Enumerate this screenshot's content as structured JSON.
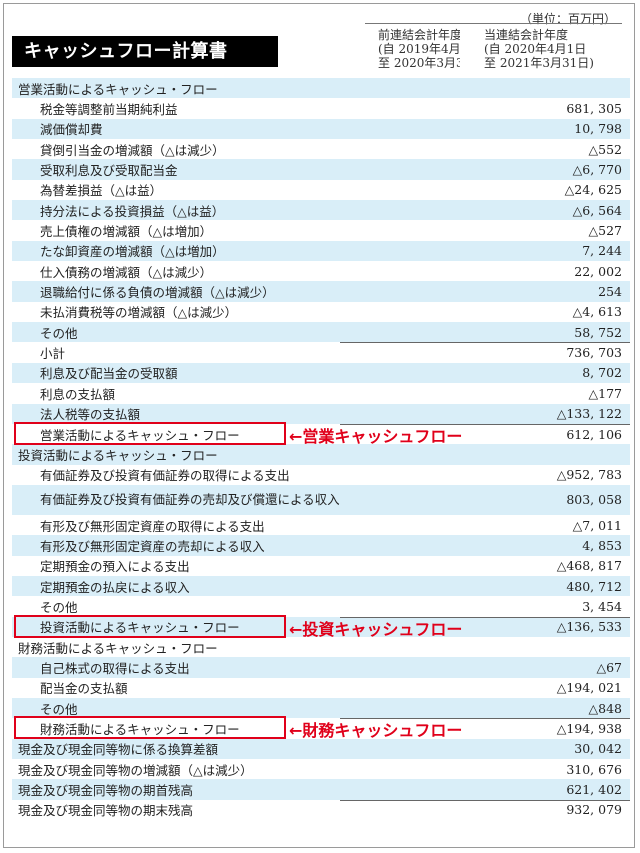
{
  "unit": "（単位：百万円）",
  "title": "キャッシュフロー計算書",
  "periods": {
    "prev": [
      "前連結会計年度",
      "(自 2019年4月1日",
      "至 2020年3月31日)"
    ],
    "curr": [
      "当連結会計年度",
      "(自 2020年4月1日",
      "至 2021年3月31日)"
    ]
  },
  "rows": [
    {
      "label": "営業活動によるキャッシュ・フロー",
      "value": "",
      "type": "sec",
      "blue": true
    },
    {
      "label": "税金等調整前当期純利益",
      "value": "681, 305",
      "blue": false
    },
    {
      "label": "減価償却費",
      "value": "10, 798",
      "blue": true
    },
    {
      "label": "貸倒引当金の増減額（△は減少）",
      "value": "△552",
      "blue": false
    },
    {
      "label": "受取利息及び受取配当金",
      "value": "△6, 770",
      "blue": true
    },
    {
      "label": "為替差損益（△は益）",
      "value": "△24, 625",
      "blue": false
    },
    {
      "label": "持分法による投資損益（△は益）",
      "value": "△6, 564",
      "blue": true
    },
    {
      "label": "売上債権の増減額（△は増加）",
      "value": "△527",
      "blue": false
    },
    {
      "label": "たな卸資産の増減額（△は増加）",
      "value": "7, 244",
      "blue": true
    },
    {
      "label": "仕入債務の増減額（△は減少）",
      "value": "22, 002",
      "blue": false
    },
    {
      "label": "退職給付に係る負債の増減額（△は減少）",
      "value": "254",
      "blue": true
    },
    {
      "label": "未払消費税等の増減額（△は減少）",
      "value": "△4, 613",
      "blue": false
    },
    {
      "label": "その他",
      "value": "58, 752",
      "blue": true
    },
    {
      "label": "小計",
      "value": "736, 703",
      "blue": false,
      "line": true
    },
    {
      "label": "利息及び配当金の受取額",
      "value": "8, 702",
      "blue": true
    },
    {
      "label": "利息の支払額",
      "value": "△177",
      "blue": false
    },
    {
      "label": "法人税等の支払額",
      "value": "△133, 122",
      "blue": true
    },
    {
      "label": "営業活動によるキャッシュ・フロー",
      "value": "612, 106",
      "blue": false,
      "line": true,
      "boxed": true
    },
    {
      "label": "投資活動によるキャッシュ・フロー",
      "value": "",
      "type": "sec",
      "blue": true
    },
    {
      "label": "有価証券及び投資有価証券の取得による支出",
      "value": "△952, 783",
      "blue": false
    },
    {
      "label": "有価証券及び投資有価証券の売却及び償還による収入",
      "value": "803, 058",
      "blue": true,
      "tall": true
    },
    {
      "label": "有形及び無形固定資産の取得による支出",
      "value": "△7, 011",
      "blue": false
    },
    {
      "label": "有形及び無形固定資産の売却による収入",
      "value": "4, 853",
      "blue": true
    },
    {
      "label": "定期預金の預入による支出",
      "value": "△468, 817",
      "blue": false
    },
    {
      "label": "定期預金の払戻による収入",
      "value": "480, 712",
      "blue": true
    },
    {
      "label": "その他",
      "value": "3, 454",
      "blue": false
    },
    {
      "label": "投資活動によるキャッシュ・フロー",
      "value": "△136, 533",
      "blue": true,
      "line": true,
      "boxed": true
    },
    {
      "label": "財務活動によるキャッシュ・フロー",
      "value": "",
      "type": "sec",
      "blue": false
    },
    {
      "label": "自己株式の取得による支出",
      "value": "△67",
      "blue": true
    },
    {
      "label": "配当金の支払額",
      "value": "△194, 021",
      "blue": false
    },
    {
      "label": "その他",
      "value": "△848",
      "blue": true
    },
    {
      "label": "財務活動によるキャッシュ・フロー",
      "value": "△194, 938",
      "blue": false,
      "line": true,
      "boxed": true
    },
    {
      "label": "現金及び現金同等物に係る換算差額",
      "value": "30, 042",
      "type": "tot",
      "blue": true
    },
    {
      "label": "現金及び現金同等物の増減額（△は減少）",
      "value": "310, 676",
      "type": "tot",
      "blue": false
    },
    {
      "label": "現金及び現金同等物の期首残高",
      "value": "621, 402",
      "type": "tot",
      "blue": true
    },
    {
      "label": "現金及び現金同等物の期末残高",
      "value": "932, 079",
      "type": "tot",
      "blue": false,
      "line": true
    }
  ],
  "callouts": {
    "operating": "←営業キャッシュフロー",
    "investing": "←投資キャッシュフロー",
    "financing": "←財務キャッシュフロー"
  },
  "colors": {
    "highlight": "#e0001a",
    "row_blue": "#d9eef8"
  }
}
